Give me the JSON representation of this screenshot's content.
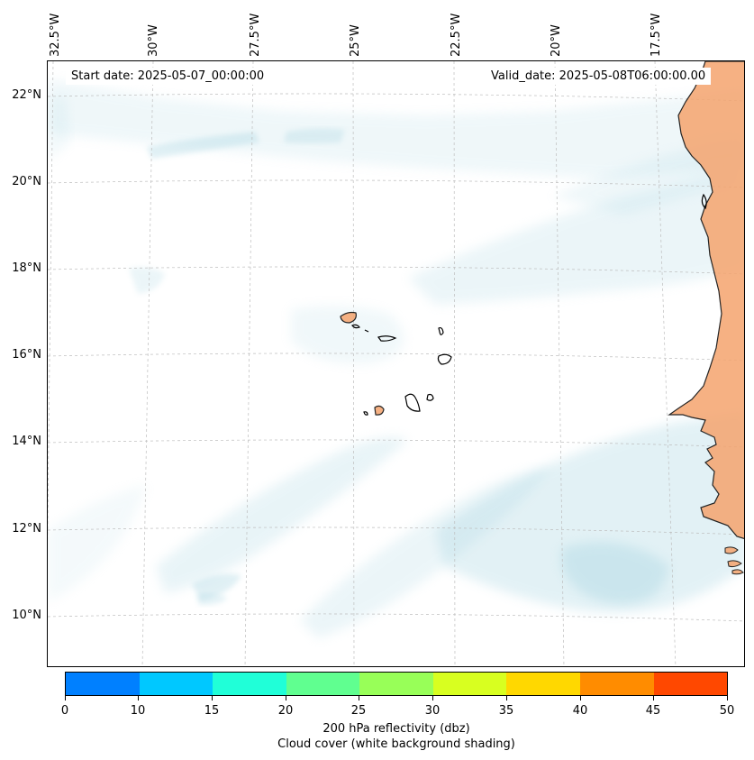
{
  "map": {
    "start_date": "Start date: 2025-05-07_00:00:00",
    "valid_date": "Valid_date: 2025-05-08T06:00:00.00",
    "lon_labels": [
      "32.5°W",
      "30°W",
      "27.5°W",
      "25°W",
      "22.5°W",
      "20°W",
      "17.5°W"
    ],
    "lat_labels": [
      "22°N",
      "20°N",
      "18°N",
      "16°N",
      "14°N",
      "12°N",
      "10°N"
    ],
    "cloud_color": "#a8d5e2",
    "land_color": "#f5a46e"
  },
  "colorbar": {
    "ticks": [
      "0",
      "10",
      "15",
      "20",
      "25",
      "30",
      "35",
      "40",
      "45",
      "50"
    ],
    "colors": [
      "#0080ff",
      "#00c8ff",
      "#20ffd8",
      "#60ff90",
      "#98ff58",
      "#d8ff20",
      "#ffd800",
      "#ff8c00",
      "#ff4800"
    ],
    "label_line1": "200 hPa reflectivity (dbz)",
    "label_line2": "Cloud cover (white background shading)"
  }
}
